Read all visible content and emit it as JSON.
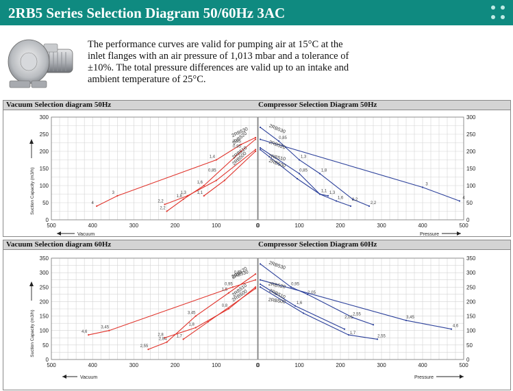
{
  "header": {
    "title": "2RB5 Series Selection Diagram 50/60Hz 3AC",
    "accent": "#0f8a80"
  },
  "intro": {
    "text": "The performance curves are valid for pumping air at 15°C at the inlet flanges with an air pressure of 1,013 mbar and a tolerance of ±10%. The total pressure differences are valid up to an intake and ambient temperature of 25°C."
  },
  "colors": {
    "vacuum": "#e0332b",
    "compressor": "#2a3f9a"
  },
  "chart_data": [
    {
      "id": "vac50",
      "type": "line",
      "title": "Vacuum Selection diagram 50Hz",
      "xlabel": "Vacuum",
      "ylabel": "Suction Capacity (m3/h)",
      "xlim": [
        500,
        0
      ],
      "ylim": [
        0,
        300
      ],
      "xticks": [
        500,
        400,
        300,
        200,
        100,
        0
      ],
      "yticks": [
        0,
        50,
        100,
        150,
        200,
        250,
        300
      ],
      "series": [
        {
          "name": "2RB530",
          "points": [
            [
              390,
              40
            ],
            [
              340,
              70
            ],
            [
              100,
              175
            ],
            [
              40,
              220
            ],
            [
              5,
              240
            ]
          ],
          "labels": [
            [
              "4",
              390,
              40
            ],
            [
              "3",
              340,
              70
            ],
            [
              "1,4",
              100,
              175
            ],
            [
              "0,85",
              40,
              220
            ]
          ]
        },
        {
          "name": "2RB520",
          "points": [
            [
              220,
              25
            ],
            [
              180,
              60
            ],
            [
              130,
              100
            ],
            [
              40,
              200
            ],
            [
              5,
              235
            ]
          ],
          "labels": [
            [
              "2,2",
              220,
              25
            ],
            [
              "1,8",
              180,
              60
            ],
            [
              "1,6",
              130,
              100
            ],
            [
              "0,95",
              40,
              205
            ]
          ]
        },
        {
          "name": "2RB510",
          "points": [
            [
              225,
              45
            ],
            [
              170,
              70
            ],
            [
              100,
              115
            ],
            [
              5,
              205
            ]
          ],
          "labels": [
            [
              "2,2",
              225,
              45
            ],
            [
              "1,3",
              170,
              70
            ],
            [
              "0,85",
              100,
              135
            ]
          ]
        },
        {
          "name": "2RB500",
          "points": [
            [
              130,
              70
            ],
            [
              80,
              115
            ],
            [
              5,
              200
            ]
          ],
          "labels": [
            [
              "1,1",
              130,
              70
            ]
          ]
        }
      ]
    },
    {
      "id": "comp50",
      "type": "line",
      "title": "Compressor Selection Diagram 50Hz",
      "xlabel": "Pressure",
      "xlim": [
        0,
        500
      ],
      "ylim": [
        0,
        300
      ],
      "xticks": [
        0,
        100,
        200,
        300,
        400,
        500
      ],
      "yticks": [
        0,
        50,
        100,
        150,
        200,
        250,
        300
      ],
      "series": [
        {
          "name": "2RB530",
          "points": [
            [
              5,
              270
            ],
            [
              50,
              230
            ],
            [
              100,
              175
            ],
            [
              150,
              135
            ],
            [
              230,
              60
            ],
            [
              270,
              40
            ]
          ],
          "labels": [
            [
              "0,85",
              50,
              230
            ],
            [
              "1,3",
              100,
              175
            ],
            [
              "1,8",
              150,
              135
            ],
            [
              "2,2",
              270,
              40
            ]
          ]
        },
        {
          "name": "2RB520",
          "points": [
            [
              5,
              235
            ],
            [
              400,
              95
            ],
            [
              490,
              55
            ]
          ],
          "labels": [
            [
              "3",
              400,
              95
            ],
            [
              "4",
              490,
              55
            ]
          ]
        },
        {
          "name": "2RB510",
          "points": [
            [
              5,
              210
            ],
            [
              100,
              135
            ],
            [
              150,
              75
            ],
            [
              170,
              70
            ]
          ],
          "labels": [
            [
              "0,85",
              100,
              135
            ],
            [
              "1,3",
              170,
              70
            ]
          ]
        },
        {
          "name": "2RB500",
          "points": [
            [
              5,
              205
            ],
            [
              95,
              120
            ],
            [
              150,
              75
            ],
            [
              190,
              55
            ],
            [
              225,
              40
            ]
          ],
          "labels": [
            [
              "1,1",
              150,
              75
            ],
            [
              "1,6",
              190,
              55
            ],
            [
              "2,2",
              225,
              50
            ]
          ]
        }
      ]
    },
    {
      "id": "vac60",
      "type": "line",
      "title": "Vacuum Selection diagram 60Hz",
      "xlabel": "Vacuum",
      "ylabel": "Suction Capacity (m3/h)",
      "xlim": [
        500,
        0
      ],
      "ylim": [
        0,
        350
      ],
      "xticks": [
        500,
        400,
        300,
        200,
        100,
        0
      ],
      "yticks": [
        0,
        50,
        100,
        150,
        200,
        250,
        300,
        350
      ],
      "series": [
        {
          "name": "2RB530",
          "points": [
            [
              410,
              85
            ],
            [
              360,
              100
            ],
            [
              60,
              250
            ],
            [
              5,
              275
            ]
          ],
          "labels": [
            [
              "4,6",
              410,
              85
            ],
            [
              "3,45",
              360,
              100
            ],
            [
              "0,95",
              60,
              250
            ]
          ]
        },
        {
          "name": "2RB520",
          "points": [
            [
              265,
              35
            ],
            [
              220,
              60
            ],
            [
              150,
              150
            ],
            [
              70,
              230
            ],
            [
              5,
              295
            ]
          ],
          "labels": [
            [
              "2,55",
              265,
              35
            ],
            [
              "2,84",
              220,
              60
            ],
            [
              "3,45",
              150,
              150
            ],
            [
              "1,5",
              70,
              230
            ],
            [
              "0,5",
              40,
              290
            ]
          ]
        },
        {
          "name": "2RB510",
          "points": [
            [
              225,
              75
            ],
            [
              150,
              110
            ],
            [
              70,
              175
            ],
            [
              5,
              250
            ]
          ],
          "labels": [
            [
              "2,8",
              225,
              75
            ],
            [
              "1,8",
              150,
              110
            ],
            [
              "0,8",
              70,
              175
            ]
          ]
        },
        {
          "name": "2RB500",
          "points": [
            [
              180,
              70
            ],
            [
              120,
              130
            ],
            [
              5,
              245
            ]
          ],
          "labels": [
            [
              "1,7",
              180,
              70
            ]
          ]
        }
      ]
    },
    {
      "id": "comp60",
      "type": "line",
      "title": "Compressor Selection Diagram 60Hz",
      "xlabel": "Pressure",
      "xlim": [
        0,
        500
      ],
      "ylim": [
        0,
        350
      ],
      "xticks": [
        0,
        100,
        200,
        300,
        400,
        500
      ],
      "yticks": [
        0,
        50,
        100,
        150,
        200,
        250,
        300,
        350
      ],
      "series": [
        {
          "name": "2RB530",
          "points": [
            [
              5,
              330
            ],
            [
              80,
              250
            ],
            [
              120,
              225
            ],
            [
              230,
              145
            ],
            [
              280,
              120
            ]
          ],
          "labels": [
            [
              "0,95",
              80,
              250
            ],
            [
              "2,05",
              120,
              220
            ],
            [
              "2,55",
              230,
              145
            ]
          ]
        },
        {
          "name": "2RB520",
          "points": [
            [
              5,
              275
            ],
            [
              360,
              135
            ],
            [
              470,
              105
            ]
          ],
          "labels": [
            [
              "3,45",
              360,
              135
            ],
            [
              "4,6",
              470,
              105
            ]
          ]
        },
        {
          "name": "2RB510",
          "points": [
            [
              5,
              260
            ],
            [
              90,
              185
            ],
            [
              210,
              105
            ]
          ],
          "labels": [
            [
              "1,6",
              90,
              185
            ],
            [
              "2,05",
              210,
              135
            ]
          ]
        },
        {
          "name": "2RB500",
          "points": [
            [
              5,
              250
            ],
            [
              110,
              160
            ],
            [
              220,
              85
            ],
            [
              290,
              70
            ]
          ],
          "labels": [
            [
              "1,7",
              220,
              80
            ],
            [
              "2,55",
              290,
              70
            ]
          ]
        }
      ]
    }
  ]
}
